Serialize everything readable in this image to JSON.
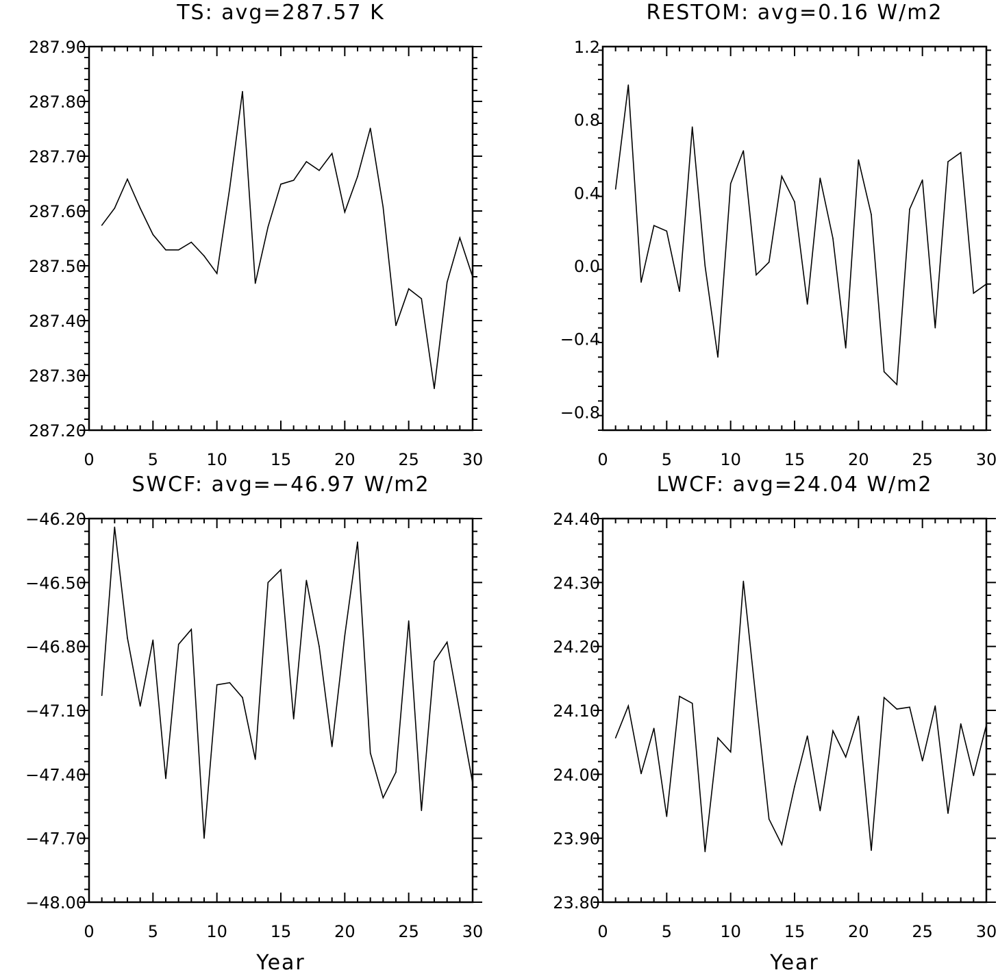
{
  "chart_data": [
    {
      "type": "line",
      "title": "TS: avg=287.57 K",
      "xlabel": "",
      "ylabel": "",
      "xlim": [
        0,
        30
      ],
      "ylim": [
        287.2,
        287.9
      ],
      "x_ticks": [
        "0",
        "5",
        "10",
        "15",
        "20",
        "25",
        "30"
      ],
      "y_ticks": [
        "287.20",
        "287.30",
        "287.40",
        "287.50",
        "287.60",
        "287.70",
        "287.80",
        "287.90"
      ],
      "x": [
        1,
        2,
        3,
        4,
        5,
        6,
        7,
        8,
        9,
        10,
        11,
        12,
        13,
        14,
        15,
        16,
        17,
        18,
        19,
        20,
        21,
        22,
        23,
        24,
        25,
        26,
        27,
        28,
        29,
        30
      ],
      "values": [
        287.574,
        287.605,
        287.658,
        287.605,
        287.557,
        287.529,
        287.529,
        287.543,
        287.518,
        287.486,
        287.641,
        287.818,
        287.468,
        287.571,
        287.649,
        287.656,
        287.69,
        287.674,
        287.705,
        287.598,
        287.663,
        287.751,
        287.607,
        287.391,
        287.458,
        287.44,
        287.276,
        287.47,
        287.551,
        287.48
      ],
      "grid": false
    },
    {
      "type": "line",
      "title": "RESTOM: avg=0.16 W/m2",
      "xlabel": "",
      "ylabel": "",
      "xlim": [
        0,
        30
      ],
      "ylim": [
        -0.9,
        1.2
      ],
      "x_ticks": [
        "0",
        "5",
        "10",
        "15",
        "20",
        "25",
        "30"
      ],
      "y_ticks": [
        "−0.8",
        "−0.4",
        "0.0",
        "0.4",
        "0.8",
        "1.2"
      ],
      "y_tick_values": [
        -0.8,
        -0.4,
        0.0,
        0.4,
        0.8,
        1.2
      ],
      "x": [
        1,
        2,
        3,
        4,
        5,
        6,
        7,
        8,
        9,
        10,
        11,
        12,
        13,
        14,
        15,
        16,
        17,
        18,
        19,
        20,
        21,
        22,
        23,
        24,
        25,
        26,
        27,
        28,
        29,
        30
      ],
      "values": [
        0.42,
        0.99,
        -0.09,
        0.22,
        0.19,
        -0.14,
        0.76,
        0.0,
        -0.5,
        0.45,
        0.63,
        -0.05,
        0.02,
        0.49,
        0.35,
        -0.21,
        0.48,
        0.15,
        -0.45,
        0.58,
        0.28,
        -0.58,
        -0.65,
        0.31,
        0.47,
        -0.34,
        0.57,
        0.62,
        -0.15,
        -0.1
      ],
      "grid": false
    },
    {
      "type": "line",
      "title": "SWCF: avg=−46.97 W/m2",
      "xlabel": "Year",
      "ylabel": "",
      "xlim": [
        0,
        30
      ],
      "ylim": [
        -48.0,
        -46.2
      ],
      "x_ticks": [
        "0",
        "5",
        "10",
        "15",
        "20",
        "25",
        "30"
      ],
      "y_ticks": [
        "−48.00",
        "−47.70",
        "−47.40",
        "−47.10",
        "−46.80",
        "−46.50",
        "−46.20"
      ],
      "y_tick_values": [
        -48.0,
        -47.7,
        -47.4,
        -47.1,
        -46.8,
        -46.5,
        -46.2
      ],
      "x": [
        1,
        2,
        3,
        4,
        5,
        6,
        7,
        8,
        9,
        10,
        11,
        12,
        13,
        14,
        15,
        16,
        17,
        18,
        19,
        20,
        21,
        22,
        23,
        24,
        25,
        26,
        27,
        28,
        29,
        30
      ],
      "values": [
        -47.03,
        -46.24,
        -46.76,
        -47.08,
        -46.77,
        -47.42,
        -46.79,
        -46.72,
        -47.7,
        -46.98,
        -46.97,
        -47.04,
        -47.33,
        -46.5,
        -46.44,
        -47.14,
        -46.49,
        -46.8,
        -47.27,
        -46.75,
        -46.31,
        -47.3,
        -47.51,
        -47.39,
        -46.68,
        -47.57,
        -46.87,
        -46.78,
        -47.11,
        -47.44
      ],
      "grid": false
    },
    {
      "type": "line",
      "title": "LWCF: avg=24.04 W/m2",
      "xlabel": "Year",
      "ylabel": "",
      "xlim": [
        0,
        30
      ],
      "ylim": [
        23.8,
        24.4
      ],
      "x_ticks": [
        "0",
        "5",
        "10",
        "15",
        "20",
        "25",
        "30"
      ],
      "y_ticks": [
        "23.80",
        "23.90",
        "24.00",
        "24.10",
        "24.20",
        "24.30",
        "24.40"
      ],
      "x": [
        1,
        2,
        3,
        4,
        5,
        6,
        7,
        8,
        9,
        10,
        11,
        12,
        13,
        14,
        15,
        16,
        17,
        18,
        19,
        20,
        21,
        22,
        23,
        24,
        25,
        26,
        27,
        28,
        29,
        30
      ],
      "values": [
        24.057,
        24.107,
        24.001,
        24.072,
        23.934,
        24.122,
        24.111,
        23.879,
        24.057,
        24.035,
        24.302,
        24.114,
        23.93,
        23.89,
        23.981,
        24.06,
        23.943,
        24.068,
        24.027,
        24.091,
        23.881,
        24.12,
        24.102,
        24.105,
        24.021,
        24.107,
        23.939,
        24.079,
        23.998,
        24.077
      ],
      "grid": false
    }
  ]
}
